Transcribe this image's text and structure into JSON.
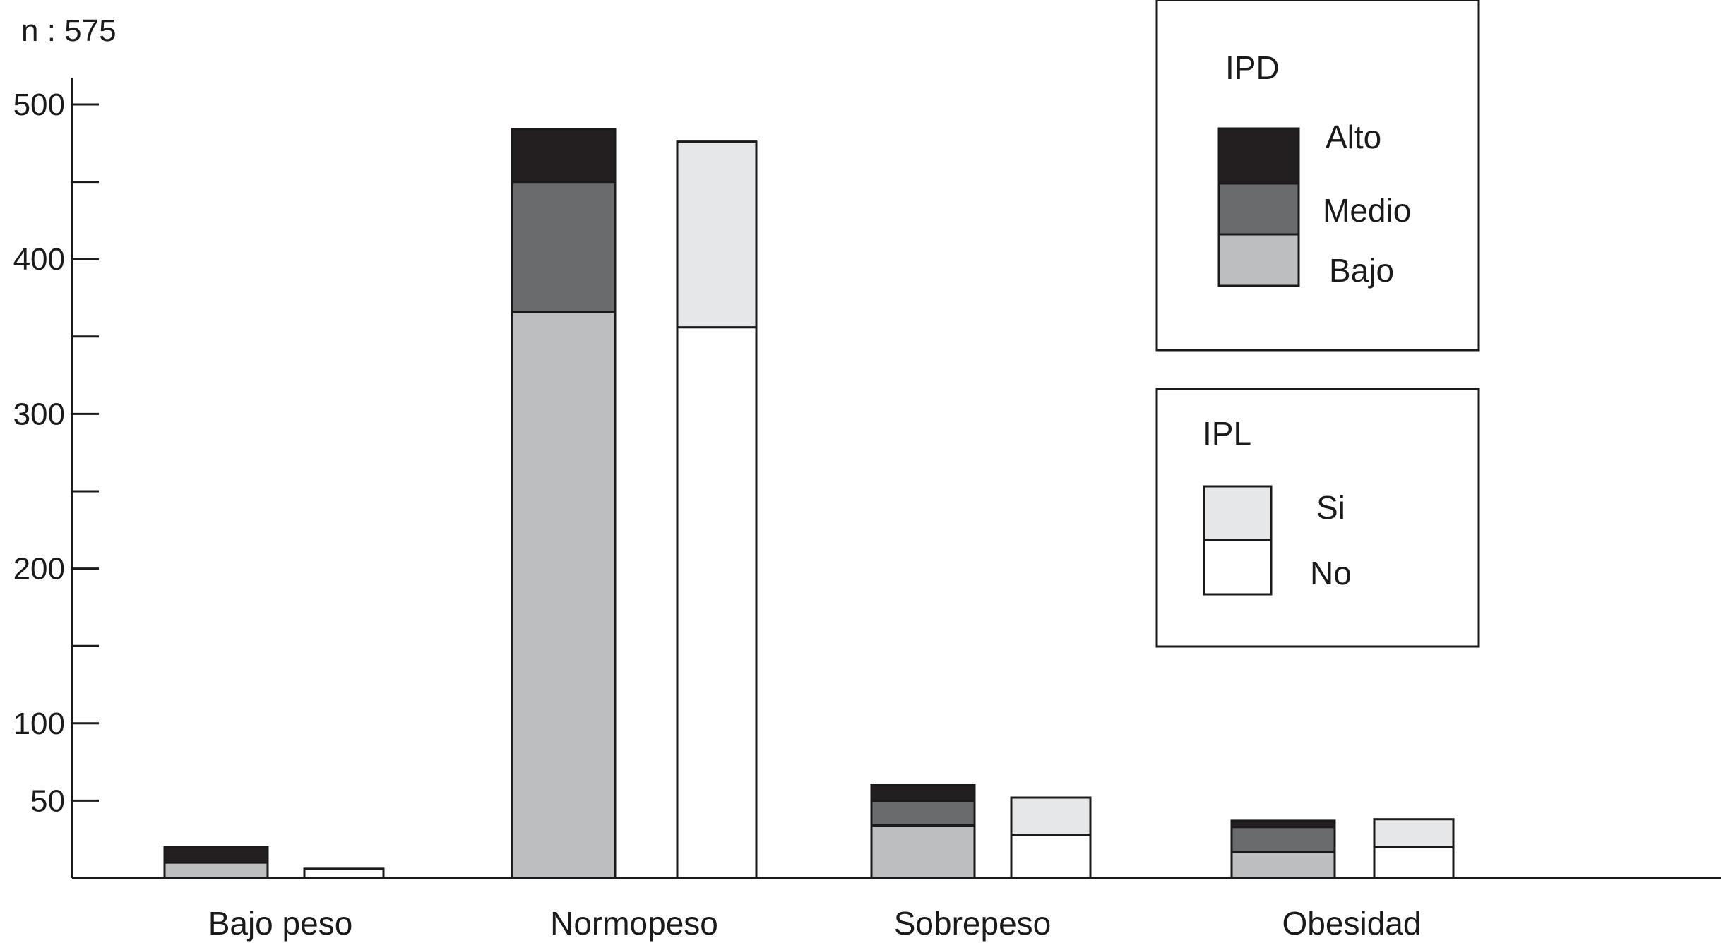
{
  "chart_data": {
    "type": "bar",
    "subtype": "grouped-stacked",
    "note": "n : 575",
    "categories": [
      "Bajo peso",
      "Normopeso",
      "Sobrepeso",
      "Obesidad"
    ],
    "groups": [
      {
        "name": "IPD",
        "series": [
          {
            "name": "Bajo",
            "color": "#bdbec0",
            "values": [
              10,
              366,
              34,
              17
            ]
          },
          {
            "name": "Medio",
            "color": "#6a6b6d",
            "values": [
              0,
              84,
              16,
              16
            ]
          },
          {
            "name": "Alto",
            "color": "#231f20",
            "values": [
              10,
              34,
              10,
              4
            ]
          }
        ]
      },
      {
        "name": "IPL",
        "series": [
          {
            "name": "No",
            "color": "#ffffff",
            "values": [
              6,
              356,
              28,
              20
            ]
          },
          {
            "name": "Si",
            "color": "#e6e7e8",
            "values": [
              0,
              120,
              24,
              18
            ]
          }
        ]
      }
    ],
    "y_ticks": [
      50,
      100,
      200,
      300,
      400,
      500
    ],
    "y_minor_ticks": [
      150,
      250,
      350,
      450
    ],
    "ylim": [
      0,
      520
    ],
    "xlabel": "",
    "ylabel": "",
    "grid": false,
    "legends": [
      {
        "title": "IPD",
        "placement": "top-right",
        "entries": [
          "Alto",
          "Medio",
          "Bajo"
        ]
      },
      {
        "title": "IPL",
        "placement": "right",
        "entries": [
          "Si",
          "No"
        ]
      }
    ]
  }
}
